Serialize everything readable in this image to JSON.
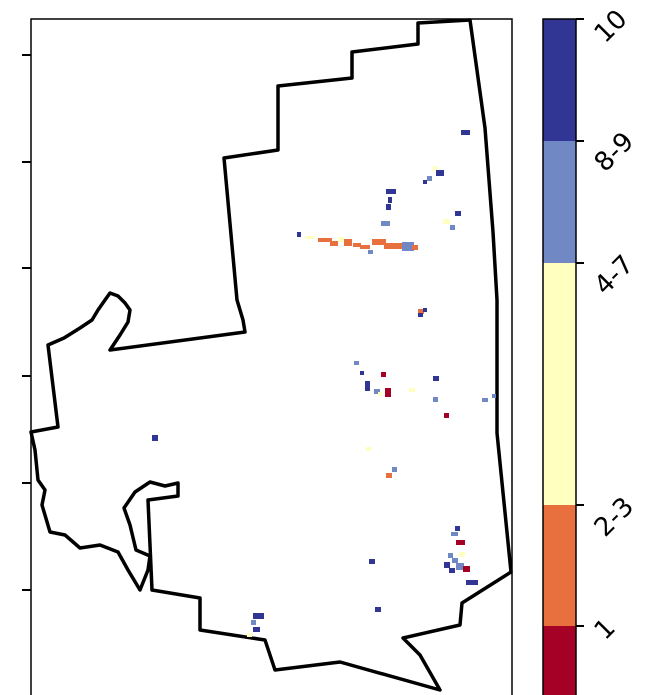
{
  "map": {
    "boundary_color": "#000000",
    "background": "#ffffff"
  },
  "legend": {
    "classes": [
      {
        "label": "1",
        "color": "#a50026"
      },
      {
        "label": "2-3",
        "color": "#e8703f"
      },
      {
        "label": "4-7",
        "color": "#ffffbf"
      },
      {
        "label": "8-9",
        "color": "#7088c4"
      },
      {
        "label": "10",
        "color": "#313695"
      }
    ]
  }
}
